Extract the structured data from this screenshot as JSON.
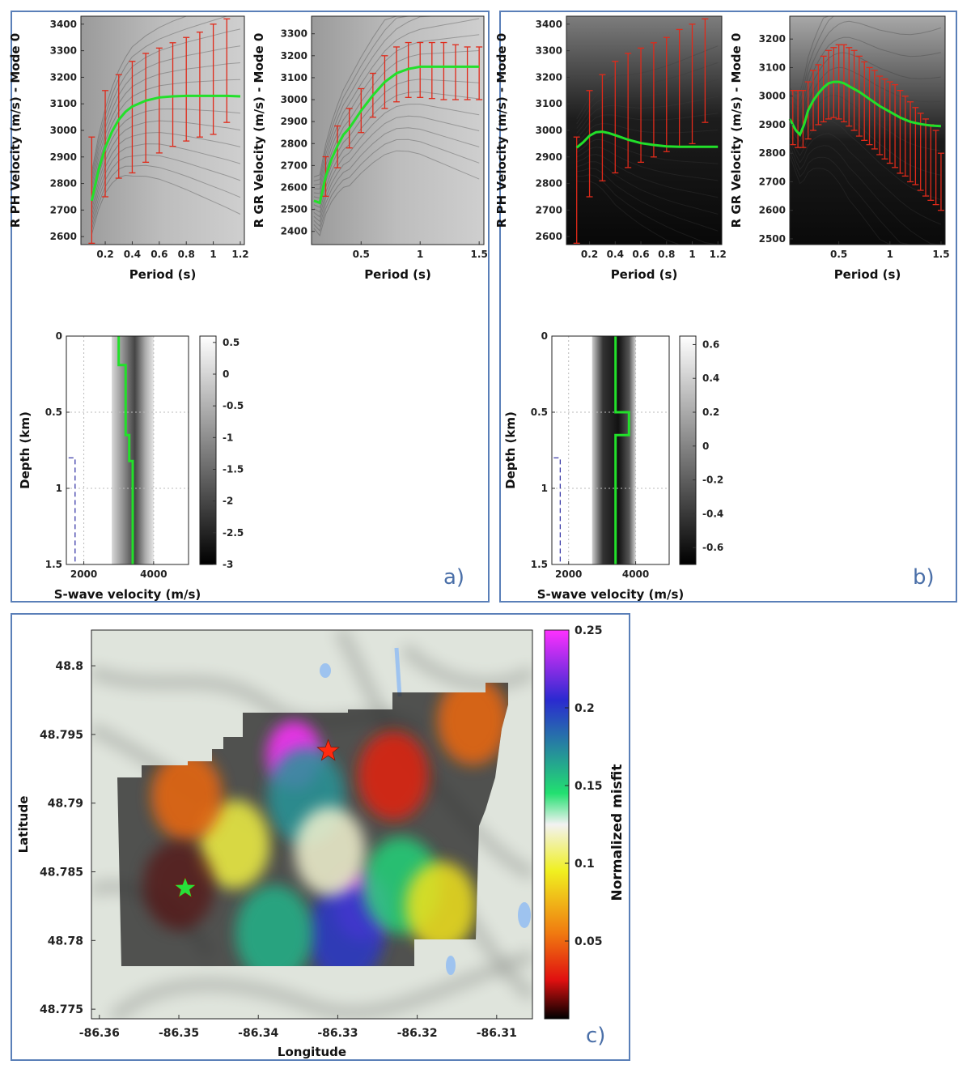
{
  "panels": {
    "a": "a)",
    "b": "b)",
    "c": "c)"
  },
  "colors": {
    "frame": "#5a7fb8",
    "best_fit": "#22e02a",
    "error_bars": "#e02a1a",
    "star_red": "#ff2a10",
    "star_green": "#27e03a",
    "dashed_line": "#3a3aa8"
  },
  "chart_data": [
    {
      "id": "a_phase",
      "type": "line",
      "title": "",
      "xlabel": "Period (s)",
      "ylabel": "R PH Velocity (m/s) - Mode 0",
      "xlim": [
        0.02,
        1.23
      ],
      "ylim": [
        2570,
        3430
      ],
      "xticks": [
        "0.2",
        "0.4",
        "0.6",
        "0.8",
        "1",
        "1.2"
      ],
      "xtick_values": [
        0.2,
        0.4,
        0.6,
        0.8,
        1.0,
        1.2
      ],
      "yticks": [
        "2600",
        "2700",
        "2800",
        "2900",
        "3000",
        "3100",
        "3200",
        "3300",
        "3400"
      ],
      "ytick_values": [
        2600,
        2700,
        2800,
        2900,
        3000,
        3100,
        3200,
        3300,
        3400
      ],
      "best_fit": {
        "x": [
          0.1,
          0.15,
          0.2,
          0.25,
          0.3,
          0.35,
          0.4,
          0.5,
          0.6,
          0.7,
          0.8,
          0.9,
          1.0,
          1.1,
          1.2
        ],
        "y": [
          2735,
          2850,
          2935,
          2995,
          3040,
          3070,
          3090,
          3112,
          3124,
          3128,
          3130,
          3130,
          3130,
          3130,
          3128
        ]
      },
      "error_bars": {
        "x": [
          0.1,
          0.2,
          0.3,
          0.4,
          0.5,
          0.6,
          0.7,
          0.8,
          0.9,
          1.0,
          1.1
        ],
        "y": [
          2735,
          2935,
          3040,
          3090,
          3112,
          3124,
          3128,
          3130,
          3130,
          3130,
          3130
        ],
        "lo": [
          2575,
          2750,
          2820,
          2840,
          2880,
          2915,
          2940,
          2960,
          2975,
          2985,
          3030
        ],
        "hi": [
          2975,
          3150,
          3210,
          3260,
          3290,
          3310,
          3330,
          3350,
          3370,
          3400,
          3420
        ]
      }
    },
    {
      "id": "a_group",
      "type": "line",
      "title": "",
      "xlabel": "Period (s)",
      "ylabel": "R GR Velocity (m/s) - Mode 0",
      "xlim": [
        0.08,
        1.54
      ],
      "ylim": [
        2340,
        3380
      ],
      "xticks": [
        "0.5",
        "1",
        "1.5"
      ],
      "xtick_values": [
        0.5,
        1.0,
        1.5
      ],
      "yticks": [
        "2400",
        "2500",
        "2600",
        "2700",
        "2800",
        "2900",
        "3000",
        "3100",
        "3200",
        "3300"
      ],
      "ytick_values": [
        2400,
        2500,
        2600,
        2700,
        2800,
        2900,
        3000,
        3100,
        3200,
        3300
      ],
      "best_fit": {
        "x": [
          0.1,
          0.15,
          0.2,
          0.25,
          0.3,
          0.35,
          0.4,
          0.5,
          0.6,
          0.7,
          0.8,
          0.9,
          1.0,
          1.1,
          1.2,
          1.3,
          1.4,
          1.5
        ],
        "y": [
          2540,
          2530,
          2650,
          2730,
          2790,
          2840,
          2870,
          2950,
          3020,
          3080,
          3120,
          3140,
          3150,
          3150,
          3150,
          3150,
          3150,
          3150
        ]
      },
      "error_bars": {
        "x": [
          0.2,
          0.3,
          0.4,
          0.5,
          0.6,
          0.7,
          0.8,
          0.9,
          1.0,
          1.1,
          1.2,
          1.3,
          1.4,
          1.5
        ],
        "y": [
          2650,
          2790,
          2870,
          2950,
          3020,
          3080,
          3120,
          3140,
          3150,
          3150,
          3150,
          3150,
          3150,
          3150
        ],
        "lo": [
          2560,
          2690,
          2780,
          2850,
          2920,
          2960,
          2990,
          3010,
          3010,
          3005,
          3000,
          3000,
          3000,
          3000
        ],
        "hi": [
          2740,
          2880,
          2960,
          3050,
          3120,
          3200,
          3240,
          3260,
          3260,
          3260,
          3260,
          3250,
          3240,
          3240
        ]
      }
    },
    {
      "id": "a_vs",
      "type": "line",
      "title": "",
      "xlabel": "S-wave velocity (m/s)",
      "ylabel": "Depth (km)",
      "xlim": [
        1500,
        5000
      ],
      "ylim": [
        0,
        1.5
      ],
      "xticks": [
        "2000",
        "4000"
      ],
      "xtick_values": [
        2000,
        4000
      ],
      "yticks": [
        "0",
        "0.5",
        "1",
        "1.5"
      ],
      "ytick_values": [
        0,
        0.5,
        1,
        1.5
      ],
      "ensemble_span": [
        2800,
        4000
      ],
      "profile": {
        "vs": [
          3000,
          3000,
          3200,
          3200,
          3300,
          3300,
          3400,
          3400
        ],
        "depth": [
          0,
          0.19,
          0.19,
          0.65,
          0.65,
          0.82,
          0.82,
          1.5
        ]
      },
      "dashed_line": {
        "vs": [
          1750,
          1750
        ],
        "depth": [
          0.8,
          1.5
        ]
      },
      "colorbar": {
        "ticks": [
          "0.5",
          "0",
          "-0.5",
          "-1",
          "-1.5",
          "-2",
          "-2.5",
          "-3"
        ],
        "tick_values": [
          0.5,
          0,
          -0.5,
          -1,
          -1.5,
          -2,
          -2.5,
          -3
        ],
        "range": [
          -3,
          0.6
        ]
      }
    },
    {
      "id": "b_phase",
      "type": "line",
      "title": "",
      "xlabel": "Period (s)",
      "ylabel": "R PH Velocity (m/s) - Mode 0",
      "xlim": [
        0.02,
        1.23
      ],
      "ylim": [
        2570,
        3430
      ],
      "xticks": [
        "0.2",
        "0.4",
        "0.6",
        "0.8",
        "1",
        "1.2"
      ],
      "xtick_values": [
        0.2,
        0.4,
        0.6,
        0.8,
        1.0,
        1.2
      ],
      "yticks": [
        "2600",
        "2700",
        "2800",
        "2900",
        "3000",
        "3100",
        "3200",
        "3300",
        "3400"
      ],
      "ytick_values": [
        2600,
        2700,
        2800,
        2900,
        3000,
        3100,
        3200,
        3300,
        3400
      ],
      "best_fit": {
        "x": [
          0.1,
          0.15,
          0.2,
          0.25,
          0.3,
          0.35,
          0.4,
          0.5,
          0.6,
          0.7,
          0.8,
          0.9,
          1.0,
          1.1,
          1.2
        ],
        "y": [
          2935,
          2955,
          2980,
          2993,
          2995,
          2990,
          2982,
          2965,
          2952,
          2945,
          2940,
          2938,
          2938,
          2938,
          2938
        ]
      },
      "error_bars": {
        "x": [
          0.1,
          0.2,
          0.3,
          0.4,
          0.5,
          0.6,
          0.7,
          0.8,
          0.9,
          1.0,
          1.1
        ],
        "y": [
          2935,
          2980,
          2995,
          2982,
          2965,
          2952,
          2945,
          2940,
          2938,
          2938,
          2938
        ],
        "lo": [
          2575,
          2750,
          2810,
          2840,
          2860,
          2880,
          2900,
          2920,
          2940,
          2950,
          3030
        ],
        "hi": [
          2975,
          3150,
          3210,
          3260,
          3290,
          3310,
          3330,
          3350,
          3380,
          3400,
          3420
        ]
      }
    },
    {
      "id": "b_group",
      "type": "line",
      "title": "",
      "xlabel": "Period (s)",
      "ylabel": "R GR Velocity (m/s) - Mode 0",
      "xlim": [
        0.02,
        1.54
      ],
      "ylim": [
        2480,
        3280
      ],
      "xticks": [
        "0.5",
        "1",
        "1.5"
      ],
      "xtick_values": [
        0.5,
        1.0,
        1.5
      ],
      "yticks": [
        "2500",
        "2600",
        "2700",
        "2800",
        "2900",
        "3000",
        "3100",
        "3200"
      ],
      "ytick_values": [
        2500,
        2600,
        2700,
        2800,
        2900,
        3000,
        3100,
        3200
      ],
      "best_fit": {
        "x": [
          0.02,
          0.08,
          0.12,
          0.16,
          0.2,
          0.25,
          0.3,
          0.35,
          0.4,
          0.45,
          0.5,
          0.55,
          0.6,
          0.7,
          0.8,
          0.9,
          1.0,
          1.1,
          1.2,
          1.3,
          1.4,
          1.5
        ],
        "y": [
          2920,
          2880,
          2865,
          2900,
          2950,
          2985,
          3010,
          3030,
          3045,
          3050,
          3050,
          3045,
          3035,
          3015,
          2990,
          2965,
          2945,
          2925,
          2910,
          2902,
          2897,
          2895
        ]
      },
      "error_bars": {
        "x": [
          0.05,
          0.1,
          0.15,
          0.2,
          0.25,
          0.3,
          0.35,
          0.4,
          0.45,
          0.5,
          0.55,
          0.6,
          0.65,
          0.7,
          0.75,
          0.8,
          0.85,
          0.9,
          0.95,
          1.0,
          1.05,
          1.1,
          1.15,
          1.2,
          1.25,
          1.3,
          1.35,
          1.4,
          1.45,
          1.5
        ],
        "y": [
          2895,
          2870,
          2880,
          2950,
          2985,
          3010,
          3030,
          3045,
          3050,
          3050,
          3045,
          3035,
          3025,
          3015,
          3003,
          2990,
          2978,
          2965,
          2955,
          2945,
          2935,
          2925,
          2918,
          2910,
          2906,
          2902,
          2900,
          2897,
          2896,
          2895
        ],
        "lo": [
          2830,
          2820,
          2820,
          2850,
          2880,
          2900,
          2910,
          2920,
          2925,
          2920,
          2910,
          2895,
          2880,
          2860,
          2845,
          2830,
          2815,
          2795,
          2780,
          2765,
          2750,
          2730,
          2720,
          2700,
          2690,
          2670,
          2650,
          2635,
          2620,
          2600
        ],
        "hi": [
          3020,
          3020,
          3020,
          3050,
          3090,
          3110,
          3140,
          3160,
          3170,
          3180,
          3180,
          3170,
          3160,
          3140,
          3120,
          3100,
          3090,
          3070,
          3060,
          3050,
          3040,
          3020,
          3000,
          2980,
          2960,
          2940,
          2920,
          2900,
          2880,
          2800
        ]
      }
    },
    {
      "id": "b_vs",
      "type": "line",
      "title": "",
      "xlabel": "S-wave velocity (m/s)",
      "ylabel": "Depth (km)",
      "xlim": [
        1500,
        5000
      ],
      "ylim": [
        0,
        1.5
      ],
      "xticks": [
        "2000",
        "4000"
      ],
      "xtick_values": [
        2000,
        4000
      ],
      "yticks": [
        "0",
        "0.5",
        "1",
        "1.5"
      ],
      "ytick_values": [
        0,
        0.5,
        1,
        1.5
      ],
      "ensemble_span": [
        2700,
        4000
      ],
      "profile": {
        "vs": [
          3400,
          3400,
          3800,
          3800,
          3400,
          3400
        ],
        "depth": [
          0,
          0.5,
          0.5,
          0.65,
          0.65,
          1.5
        ]
      },
      "dashed_line": {
        "vs": [
          1750,
          1750
        ],
        "depth": [
          0.8,
          1.5
        ]
      },
      "colorbar": {
        "ticks": [
          "0.6",
          "0.4",
          "0.2",
          "0",
          "-0.2",
          "-0.4",
          "-0.6"
        ],
        "tick_values": [
          0.6,
          0.4,
          0.2,
          0,
          -0.2,
          -0.4,
          -0.6
        ],
        "range": [
          -0.7,
          0.65
        ]
      }
    },
    {
      "id": "c_map",
      "type": "heatmap",
      "title": "",
      "xlabel": "Longitude",
      "ylabel": "Latitude",
      "xlim": [
        -86.361,
        -86.3055
      ],
      "ylim": [
        48.7743,
        48.8026
      ],
      "xticks": [
        "-86.36",
        "-86.35",
        "-86.34",
        "-86.33",
        "-86.32",
        "-86.31"
      ],
      "xtick_values": [
        -86.36,
        -86.35,
        -86.34,
        -86.33,
        -86.32,
        -86.31
      ],
      "yticks": [
        "48.8",
        "48.795",
        "48.79",
        "48.785",
        "48.78",
        "48.775"
      ],
      "ytick_values": [
        48.8,
        48.795,
        48.79,
        48.785,
        48.78,
        48.775
      ],
      "colorbar_label": "Normalized misfit",
      "colorbar_ticks": [
        "0.25",
        "0.2",
        "0.15",
        "0.1",
        "0.05"
      ],
      "colorbar_tick_values": [
        0.25,
        0.2,
        0.15,
        0.1,
        0.05
      ],
      "colorbar_range": [
        0,
        0.25
      ],
      "misfit_blobs": [
        {
          "lon": -86.3355,
          "lat": 48.7935,
          "value": 0.25
        },
        {
          "lon": -86.334,
          "lat": 48.7905,
          "value": 0.17
        },
        {
          "lon": -86.327,
          "lat": 48.7825,
          "value": 0.24
        },
        {
          "lon": -86.329,
          "lat": 48.7805,
          "value": 0.2
        },
        {
          "lon": -86.338,
          "lat": 48.7805,
          "value": 0.16
        },
        {
          "lon": -86.322,
          "lat": 48.784,
          "value": 0.15
        },
        {
          "lon": -86.343,
          "lat": 48.787,
          "value": 0.1
        },
        {
          "lon": -86.331,
          "lat": 48.7865,
          "value": 0.12
        },
        {
          "lon": -86.317,
          "lat": 48.7825,
          "value": 0.09
        },
        {
          "lon": -86.349,
          "lat": 48.7905,
          "value": 0.05
        },
        {
          "lon": -86.323,
          "lat": 48.792,
          "value": 0.03
        },
        {
          "lon": -86.313,
          "lat": 48.796,
          "value": 0.05
        },
        {
          "lon": -86.35,
          "lat": 48.784,
          "value": 0.01
        }
      ],
      "markers": [
        {
          "name": "red-star",
          "lon": -86.3312,
          "lat": 48.7938
        },
        {
          "name": "green-star",
          "lon": -86.3492,
          "lat": 48.7838
        }
      ]
    }
  ]
}
